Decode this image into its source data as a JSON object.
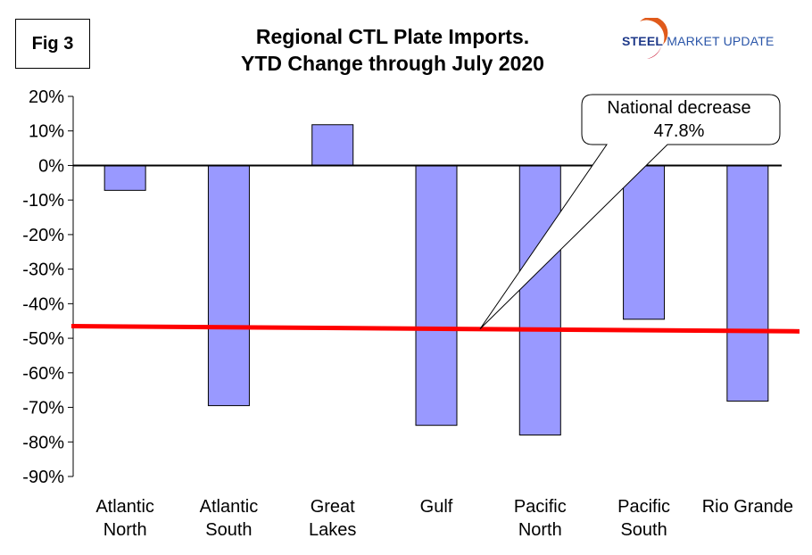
{
  "figure_label": "Fig 3",
  "title_lines": [
    "Regional CTL Plate Imports.",
    "YTD Change through July 2020"
  ],
  "logo": {
    "strong": "STEEL",
    "rest": " MARKET UPDATE",
    "colors": [
      "#1f3a8a",
      "#e05a1b"
    ]
  },
  "callout": {
    "line1": "National decrease",
    "line2": "47.8%"
  },
  "chart_data": {
    "type": "bar",
    "categories": [
      [
        "Atlantic",
        "North"
      ],
      [
        "Atlantic",
        "South"
      ],
      [
        "Great",
        "Lakes"
      ],
      [
        "Gulf"
      ],
      [
        "Pacific",
        "North"
      ],
      [
        "Pacific",
        "South"
      ],
      [
        "Rio Grande"
      ]
    ],
    "values": [
      -7.2,
      -69.5,
      11.8,
      -75.2,
      -78.0,
      -44.5,
      -68.2
    ],
    "ylim": [
      -90,
      20
    ],
    "yticks": [
      20,
      10,
      0,
      -10,
      -20,
      -30,
      -40,
      -50,
      -60,
      -70,
      -80,
      -90
    ],
    "ytick_labels": [
      "20%",
      "10%",
      "0%",
      "-10%",
      "-20%",
      "-30%",
      "-40%",
      "-50%",
      "-60%",
      "-70%",
      "-80%",
      "-90%"
    ],
    "bar_color": "#9999ff",
    "national_line": {
      "y_start": -46.5,
      "y_end": -48.0,
      "color": "#ff0000"
    },
    "grid": false
  }
}
